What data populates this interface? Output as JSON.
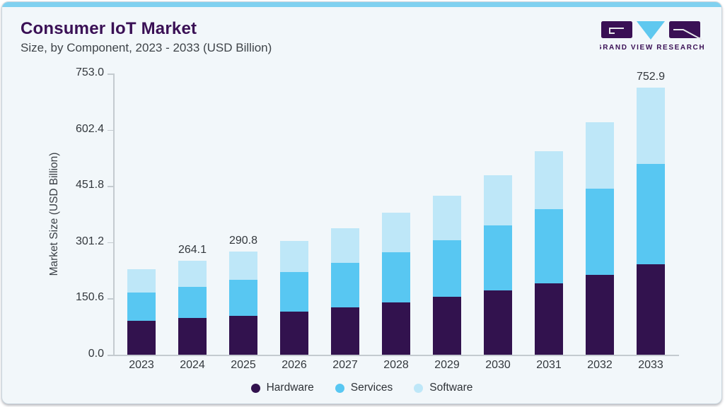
{
  "header": {
    "title": "Consumer IoT Market",
    "subtitle": "Size, by Component, 2023 - 2033 (USD Billion)"
  },
  "logo": {
    "text": "GRAND VIEW RESEARCH"
  },
  "colors": {
    "hardware": "#32124E",
    "services": "#58C7F2",
    "software": "#BEE7F8",
    "title_purple": "#3A1055",
    "accent_strip": "#80D1F0",
    "card_background": "#F2F7FA",
    "axis_line": "#C4CBD0",
    "text_dark": "#33383D"
  },
  "chart_data": {
    "type": "bar",
    "stacked": true,
    "title": "Consumer IoT Market Size, by Component, 2023 - 2033 (USD Billion)",
    "xlabel": "",
    "ylabel": "Market Size (USD Billion)",
    "ylim": [
      0,
      753
    ],
    "grid": false,
    "legend_position": "bottom",
    "yticks": [
      "753.0",
      "602.4",
      "451.8",
      "301.2",
      "150.6",
      "0.0"
    ],
    "categories": [
      "2023",
      "2024",
      "2025",
      "2026",
      "2027",
      "2028",
      "2029",
      "2030",
      "2031",
      "2032",
      "2033"
    ],
    "series": [
      {
        "name": "Hardware",
        "color_key": "hardware",
        "values": [
          94.9,
          103.0,
          109.5,
          121.4,
          133.3,
          146.7,
          163.8,
          180.5,
          200.4,
          224.3,
          254.1
        ]
      },
      {
        "name": "Services",
        "color_key": "services",
        "values": [
          79.6,
          88.0,
          101.5,
          111.4,
          125.4,
          141.9,
          158.6,
          184.3,
          210.9,
          243.9,
          283.2
        ]
      },
      {
        "name": "Software",
        "color_key": "software",
        "values": [
          66.3,
          73.1,
          79.8,
          87.6,
          98.1,
          111.4,
          125.4,
          141.3,
          162.4,
          187.1,
          215.6
        ]
      }
    ],
    "totals": [
      240.8,
      264.1,
      290.8,
      320.4,
      356.8,
      400.0,
      447.8,
      506.1,
      573.7,
      655.3,
      752.9
    ],
    "bar_value_labels": {
      "2024": "264.1",
      "2025": "290.8",
      "2033": "752.9"
    }
  }
}
